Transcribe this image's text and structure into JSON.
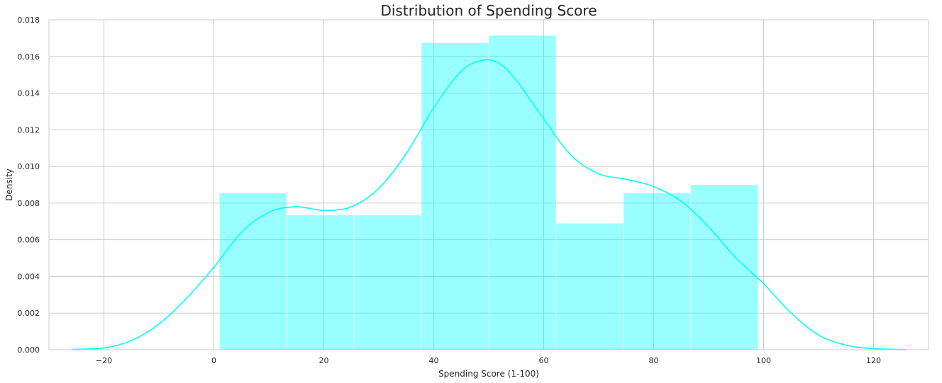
{
  "chart_data": {
    "type": "histogram",
    "title": "Distribution of Spending Score",
    "xlabel": "Spending Score (1-100)",
    "ylabel": "Density",
    "xlim": [
      -30,
      130
    ],
    "ylim": [
      0,
      0.018
    ],
    "x_ticks": [
      "−20",
      "0",
      "20",
      "40",
      "60",
      "80",
      "100",
      "120"
    ],
    "x_tick_values": [
      -20,
      0,
      20,
      40,
      60,
      80,
      100,
      120
    ],
    "y_ticks": [
      "0.000",
      "0.002",
      "0.004",
      "0.006",
      "0.008",
      "0.010",
      "0.012",
      "0.014",
      "0.016",
      "0.018"
    ],
    "y_tick_values": [
      0,
      0.002,
      0.004,
      0.006,
      0.008,
      0.01,
      0.012,
      0.014,
      0.016,
      0.018
    ],
    "grid": true,
    "bins": [
      {
        "x0": 1,
        "x1": 13.25,
        "density": 0.00855
      },
      {
        "x0": 13.25,
        "x1": 25.5,
        "density": 0.00735
      },
      {
        "x0": 25.5,
        "x1": 37.75,
        "density": 0.00735
      },
      {
        "x0": 37.75,
        "x1": 50,
        "density": 0.01675
      },
      {
        "x0": 50,
        "x1": 62.25,
        "density": 0.01715
      },
      {
        "x0": 62.25,
        "x1": 74.5,
        "density": 0.0069
      },
      {
        "x0": 74.5,
        "x1": 86.75,
        "density": 0.00855
      },
      {
        "x0": 86.75,
        "x1": 99,
        "density": 0.009
      }
    ],
    "kde": [
      [
        -25.9,
        2e-05
      ],
      [
        -20,
        0.0001
      ],
      [
        -15,
        0.0005
      ],
      [
        -10,
        0.0014
      ],
      [
        -5,
        0.0028
      ],
      [
        0,
        0.0045
      ],
      [
        5,
        0.0064
      ],
      [
        10,
        0.0075
      ],
      [
        15,
        0.0078
      ],
      [
        20,
        0.0076
      ],
      [
        25,
        0.0078
      ],
      [
        30,
        0.0088
      ],
      [
        35,
        0.0107
      ],
      [
        40,
        0.0132
      ],
      [
        45,
        0.0152
      ],
      [
        49,
        0.0158
      ],
      [
        52,
        0.0156
      ],
      [
        55,
        0.0147
      ],
      [
        60,
        0.0126
      ],
      [
        65,
        0.0106
      ],
      [
        70,
        0.0096
      ],
      [
        75,
        0.0093
      ],
      [
        80,
        0.0089
      ],
      [
        85,
        0.0081
      ],
      [
        90,
        0.0067
      ],
      [
        95,
        0.005
      ],
      [
        100,
        0.0036
      ],
      [
        105,
        0.002
      ],
      [
        110,
        0.0008
      ],
      [
        115,
        0.00025
      ],
      [
        120,
        6e-05
      ],
      [
        126,
        1e-05
      ]
    ],
    "bar_color": "#00FFFF",
    "bar_opacity": 0.4,
    "line_color": "#00FFFF",
    "grid_color": "#cccccc"
  }
}
